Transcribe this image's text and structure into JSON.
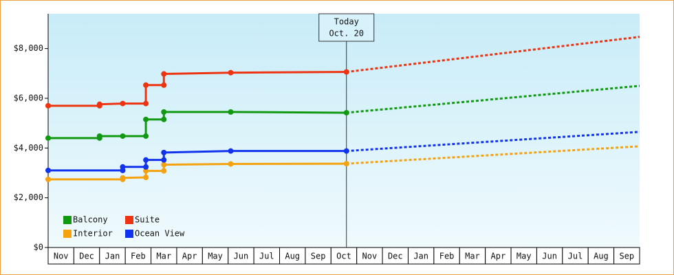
{
  "chart_data": {
    "type": "line",
    "categories": [
      "Nov",
      "Dec",
      "Jan",
      "Feb",
      "Mar",
      "Apr",
      "May",
      "Jun",
      "Jul",
      "Aug",
      "Sep",
      "Oct",
      "Nov",
      "Dec",
      "Jan",
      "Feb",
      "Mar",
      "Apr",
      "May",
      "Jun",
      "Jul",
      "Aug",
      "Sep"
    ],
    "xlim": [
      0,
      23
    ],
    "ylim": [
      0,
      9400
    ],
    "yticks": [
      {
        "value": 0,
        "label": "$0"
      },
      {
        "value": 2000,
        "label": "$2,000"
      },
      {
        "value": 4000,
        "label": "$4,000"
      },
      {
        "value": 6000,
        "label": "$6,000"
      },
      {
        "value": 8000,
        "label": "$8,000"
      }
    ],
    "legend": "bottom-left",
    "series": [
      {
        "name": "Balcony",
        "color": "#119911",
        "x": [
          0,
          2,
          2,
          2.9,
          3.8,
          3.8,
          4.5,
          4.5,
          7.1,
          11.6
        ],
        "values": [
          4400,
          4400,
          4480,
          4480,
          4480,
          5150,
          5150,
          5450,
          5450,
          5420
        ],
        "projection": {
          "x": [
            11.6,
            23
          ],
          "values": [
            5420,
            6500
          ]
        }
      },
      {
        "name": "Suite",
        "color": "#ee3311",
        "x": [
          0,
          2,
          2,
          2.9,
          3.8,
          3.8,
          4.5,
          4.5,
          7.1,
          11.6
        ],
        "values": [
          5700,
          5700,
          5760,
          5790,
          5790,
          6530,
          6530,
          6980,
          7030,
          7060
        ],
        "projection": {
          "x": [
            11.6,
            23
          ],
          "values": [
            7060,
            8470
          ]
        }
      },
      {
        "name": "Interior",
        "color": "#f5a20f",
        "x": [
          0,
          2.9,
          2.9,
          3.8,
          3.8,
          4.5,
          4.5,
          7.1,
          11.6
        ],
        "values": [
          2740,
          2740,
          2800,
          2820,
          3080,
          3080,
          3330,
          3360,
          3370
        ],
        "projection": {
          "x": [
            11.6,
            23
          ],
          "values": [
            3370,
            4070
          ]
        }
      },
      {
        "name": "Ocean View",
        "color": "#1133ee",
        "x": [
          0,
          2.9,
          2.9,
          3.8,
          3.8,
          4.5,
          4.5,
          7.1,
          11.6
        ],
        "values": [
          3100,
          3100,
          3240,
          3240,
          3520,
          3520,
          3820,
          3880,
          3880
        ],
        "projection": {
          "x": [
            11.6,
            23
          ],
          "values": [
            3880,
            4650
          ]
        }
      }
    ],
    "annotation": {
      "x": 11.6,
      "lines": [
        "Today",
        "Oct. 20"
      ]
    }
  }
}
